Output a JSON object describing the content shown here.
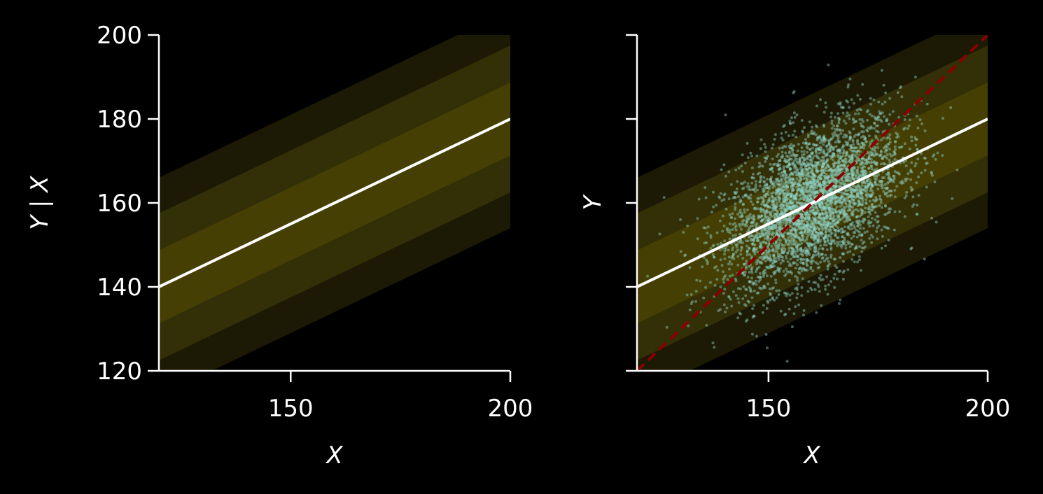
{
  "chart_data": [
    {
      "type": "line",
      "xlabel": "X",
      "ylabel": "Y | X",
      "xlim": [
        120,
        200
      ],
      "ylim": [
        120,
        200
      ],
      "x_ticks": [
        150,
        200
      ],
      "x_tick_labels": [
        "150",
        "200"
      ],
      "y_ticks": [
        120,
        140,
        160,
        180,
        200
      ],
      "y_tick_labels": [
        "120",
        "140",
        "160",
        "180",
        "200"
      ],
      "grid": false,
      "regression_line": {
        "x": [
          120,
          200
        ],
        "y": [
          140,
          180
        ],
        "color": "#ffffff"
      },
      "bands": [
        {
          "halfwidth": 26,
          "color": "#1c1a05"
        },
        {
          "halfwidth": 17.5,
          "color": "#332f06"
        },
        {
          "halfwidth": 8.7,
          "color": "#453f03"
        }
      ]
    },
    {
      "type": "scatter",
      "xlabel": "X",
      "ylabel": "Y",
      "xlim": [
        120,
        200
      ],
      "ylim": [
        120,
        200
      ],
      "x_ticks": [
        150,
        200
      ],
      "x_tick_labels": [
        "150",
        "200"
      ],
      "y_ticks": [
        120,
        140,
        160,
        180,
        200
      ],
      "y_tick_labels": [
        "",
        "",
        "",
        "",
        ""
      ],
      "grid": false,
      "regression_line": {
        "x": [
          120,
          200
        ],
        "y": [
          140,
          180
        ],
        "color": "#ffffff"
      },
      "identity_line": {
        "x": [
          120,
          200
        ],
        "y": [
          120,
          200
        ],
        "color": "#8b0000",
        "style": "dashed"
      },
      "bands": [
        {
          "halfwidth": 26,
          "color": "#1c1a05"
        },
        {
          "halfwidth": 17.5,
          "color": "#332f06"
        },
        {
          "halfwidth": 8.7,
          "color": "#453f03"
        }
      ],
      "scatter": {
        "color": "#8dd3c7",
        "mean_x": 160,
        "mean_y": 160,
        "sd_x": 10,
        "sd_y": 10,
        "correlation": 0.5,
        "n_points": 4000
      }
    }
  ]
}
